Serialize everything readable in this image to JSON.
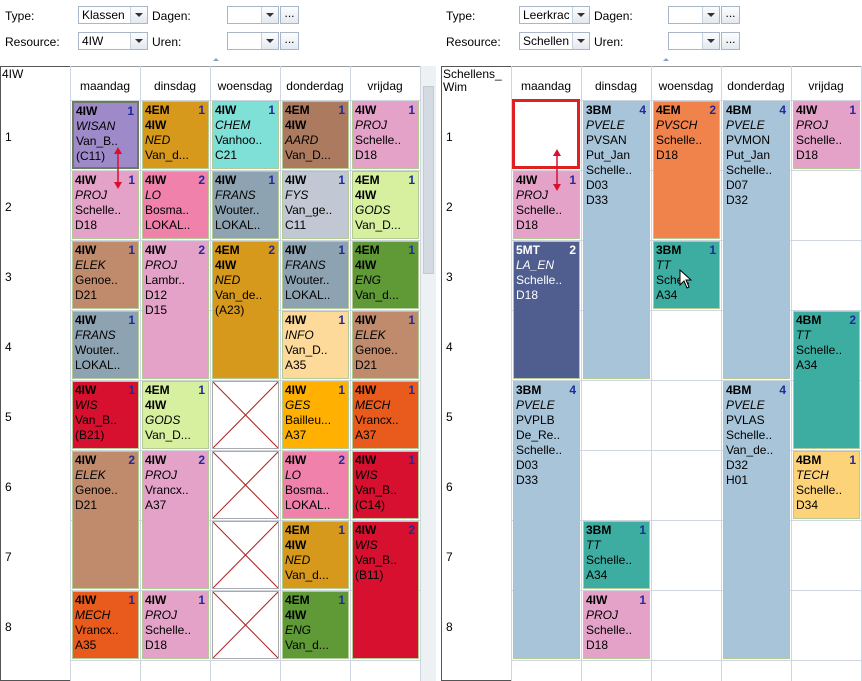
{
  "left": {
    "type_label": "Type:",
    "type_value": "Klassen",
    "days_label": "Dagen:",
    "days_value": "",
    "resource_label": "Resource:",
    "resource_value": "4IW",
    "hours_label": "Uren:",
    "hours_value": "",
    "more_label": "...",
    "corner_label": "4IW",
    "days": [
      "maandag",
      "dinsdag",
      "woensdag",
      "donderdag",
      "vrijdag"
    ],
    "rows": [
      "1",
      "2",
      "3",
      "4",
      "5",
      "6",
      "7",
      "8"
    ],
    "lessons": [
      {
        "day": 0,
        "start": 0,
        "span": 1,
        "color": "#9f8ac9",
        "selected": true,
        "l1": "4IW",
        "l2": "WISAN",
        "l3": "Van_B..",
        "l4": "(C11)",
        "l5": "",
        "count": "1"
      },
      {
        "day": 1,
        "start": 0,
        "span": 1,
        "color": "#d6991c",
        "l1": "4EM",
        "l2": "4IW",
        "l3": "NED",
        "l4": "Van_d...",
        "l5": "",
        "count": "1",
        "l2bold": true,
        "l3italic": true
      },
      {
        "day": 2,
        "start": 0,
        "span": 1,
        "color": "#7fe0d8",
        "l1": "4IW",
        "l2": "CHEM",
        "l3": "Vanhoo..",
        "l4": "C21",
        "l5": "",
        "count": "1"
      },
      {
        "day": 3,
        "start": 0,
        "span": 1,
        "color": "#ac7a5f",
        "l1": "4EM",
        "l2": "4IW",
        "l3": "AARD",
        "l4": "Van_D...",
        "l5": "",
        "count": "1",
        "l2bold": true,
        "l3italic": true
      },
      {
        "day": 4,
        "start": 0,
        "span": 1,
        "color": "#e4a2c9",
        "l1": "4IW",
        "l2": "PROJ",
        "l3": "Schelle..",
        "l4": "D18",
        "l5": "",
        "count": "1"
      },
      {
        "day": 0,
        "start": 1,
        "span": 1,
        "color": "#e4a2c9",
        "l1": "4IW",
        "l2": "PROJ",
        "l3": "Schelle..",
        "l4": "D18",
        "l5": "",
        "count": "1"
      },
      {
        "day": 1,
        "start": 1,
        "span": 1,
        "color": "#ef81ab",
        "l1": "4IW",
        "l2": "LO",
        "l3": "Bosma..",
        "l4": "LOKAL..",
        "l5": "",
        "count": "2"
      },
      {
        "day": 2,
        "start": 1,
        "span": 1,
        "color": "#8ea3b2",
        "l1": "4IW",
        "l2": "FRANS",
        "l3": "Wouter..",
        "l4": "LOKAL..",
        "l5": "",
        "count": "1"
      },
      {
        "day": 3,
        "start": 1,
        "span": 1,
        "color": "#c1c8d3",
        "l1": "4IW",
        "l2": "FYS",
        "l3": "Van_ge..",
        "l4": "C11",
        "l5": "",
        "count": "1"
      },
      {
        "day": 4,
        "start": 1,
        "span": 1,
        "color": "#d6f0a0",
        "l1": "4EM",
        "l2": "4IW",
        "l3": "GODS",
        "l4": "Van_D...",
        "l5": "",
        "count": "1",
        "l2bold": true,
        "l3italic": true
      },
      {
        "day": 0,
        "start": 2,
        "span": 1,
        "color": "#c08b6d",
        "l1": "4IW",
        "l2": "ELEK",
        "l3": "Genoe..",
        "l4": "D21",
        "l5": "",
        "count": "1"
      },
      {
        "day": 1,
        "start": 2,
        "span": 2,
        "color": "#e4a2c9",
        "l1": "4IW",
        "l2": "PROJ",
        "l3": "Lambr..",
        "l4": "D12",
        "l5": "D15",
        "count": "2"
      },
      {
        "day": 2,
        "start": 2,
        "span": 2,
        "color": "#d6991c",
        "l1": "4EM",
        "l2": "4IW",
        "l3": "NED",
        "l4": "Van_de..",
        "l5": "(A23)",
        "count": "2",
        "l2bold": true,
        "l3italic": true
      },
      {
        "day": 3,
        "start": 2,
        "span": 1,
        "color": "#8ea3b2",
        "l1": "4IW",
        "l2": "FRANS",
        "l3": "Wouter..",
        "l4": "LOKAL..",
        "l5": "",
        "count": "1"
      },
      {
        "day": 4,
        "start": 2,
        "span": 1,
        "color": "#5f9a37",
        "l1": "4EM",
        "l2": "4IW",
        "l3": "ENG",
        "l4": "Van_d...",
        "l5": "",
        "count": "1",
        "l2bold": true,
        "l3italic": true
      },
      {
        "day": 0,
        "start": 3,
        "span": 1,
        "color": "#8ea3b2",
        "l1": "4IW",
        "l2": "FRANS",
        "l3": "Wouter..",
        "l4": "LOKAL..",
        "l5": "",
        "count": "1"
      },
      {
        "day": 3,
        "start": 3,
        "span": 1,
        "color": "#fdd99a",
        "l1": "4IW",
        "l2": "INFO",
        "l3": "Van_D..",
        "l4": "A35",
        "l5": "",
        "count": "1"
      },
      {
        "day": 4,
        "start": 3,
        "span": 1,
        "color": "#c08b6d",
        "l1": "4IW",
        "l2": "ELEK",
        "l3": "Genoe..",
        "l4": "D21",
        "l5": "",
        "count": "1"
      },
      {
        "day": 0,
        "start": 4,
        "span": 1,
        "color": "#d8102f",
        "l1": "4IW",
        "l2": "WIS",
        "l3": "Van_B..",
        "l4": "(B21)",
        "l5": "",
        "count": "1"
      },
      {
        "day": 1,
        "start": 4,
        "span": 1,
        "color": "#d6f0a0",
        "l1": "4EM",
        "l2": "4IW",
        "l3": "GODS",
        "l4": "Van_D...",
        "l5": "",
        "count": "1",
        "l2bold": true,
        "l3italic": true
      },
      {
        "day": 3,
        "start": 4,
        "span": 1,
        "color": "#ffb000",
        "l1": "4IW",
        "l2": "GES",
        "l3": "Bailleu...",
        "l4": "A37",
        "l5": "",
        "count": "1"
      },
      {
        "day": 4,
        "start": 4,
        "span": 1,
        "color": "#e85b1c",
        "l1": "4IW",
        "l2": "MECH",
        "l3": "Vrancx..",
        "l4": "A37",
        "l5": "",
        "count": "1"
      },
      {
        "day": 0,
        "start": 5,
        "span": 2,
        "color": "#c08b6d",
        "l1": "4IW",
        "l2": "ELEK",
        "l3": "Genoe..",
        "l4": "D21",
        "l5": "",
        "count": "2"
      },
      {
        "day": 1,
        "start": 5,
        "span": 2,
        "color": "#e4a2c9",
        "l1": "4IW",
        "l2": "PROJ",
        "l3": "Vrancx..",
        "l4": "A37",
        "l5": "",
        "count": "2"
      },
      {
        "day": 3,
        "start": 5,
        "span": 1,
        "color": "#ef81ab",
        "l1": "4IW",
        "l2": "LO",
        "l3": "Bosma..",
        "l4": "LOKAL..",
        "l5": "",
        "count": "2"
      },
      {
        "day": 4,
        "start": 5,
        "span": 1,
        "color": "#d8102f",
        "l1": "4IW",
        "l2": "WIS",
        "l3": "Van_B..",
        "l4": "(C14)",
        "l5": "",
        "count": "1"
      },
      {
        "day": 3,
        "start": 6,
        "span": 1,
        "color": "#d6991c",
        "l1": "4EM",
        "l2": "4IW",
        "l3": "NED",
        "l4": "Van_d...",
        "l5": "",
        "count": "1",
        "l2bold": true,
        "l3italic": true
      },
      {
        "day": 4,
        "start": 6,
        "span": 2,
        "color": "#d8102f",
        "l1": "4IW",
        "l2": "WIS",
        "l3": "Van_B..",
        "l4": "(B11)",
        "l5": "",
        "count": "2"
      },
      {
        "day": 0,
        "start": 7,
        "span": 1,
        "color": "#e85b1c",
        "l1": "4IW",
        "l2": "MECH",
        "l3": "Vrancx..",
        "l4": "A35",
        "l5": "",
        "count": "1"
      },
      {
        "day": 1,
        "start": 7,
        "span": 1,
        "color": "#e4a2c9",
        "l1": "4IW",
        "l2": "PROJ",
        "l3": "Schelle..",
        "l4": "D18",
        "l5": "",
        "count": "1"
      },
      {
        "day": 3,
        "start": 7,
        "span": 1,
        "color": "#5f9a37",
        "l1": "4EM",
        "l2": "4IW",
        "l3": "ENG",
        "l4": "Van_d...",
        "l5": "",
        "count": "1",
        "l2bold": true,
        "l3italic": true
      }
    ]
  },
  "right": {
    "type_label": "Type:",
    "type_value": "Leerkracht",
    "days_label": "Dagen:",
    "days_value": "",
    "resource_label": "Resource:",
    "resource_value": "Schellens_",
    "hours_label": "Uren:",
    "hours_value": "",
    "more_label": "...",
    "corner_label": "Schellens_\nWim",
    "days": [
      "maandag",
      "dinsdag",
      "woensdag",
      "donderdag",
      "vrijdag"
    ],
    "rows": [
      "1",
      "2",
      "3",
      "4",
      "5",
      "6",
      "7",
      "8"
    ],
    "lessons": [
      {
        "day": 0,
        "start": 1,
        "span": 1,
        "color": "#e4a2c9",
        "l1": "4IW",
        "l2": "PROJ",
        "l3": "Schelle..",
        "l4": "D18",
        "l5": "",
        "count": "1"
      },
      {
        "day": 1,
        "start": 0,
        "span": 4,
        "color": "#a8c4d9",
        "l1": "3BM",
        "l2": "PVELE",
        "l3": "PVSAN",
        "l4": "Put_Jan",
        "l5": "Schelle..",
        "l6": "D03",
        "l7": "D33",
        "count": "4"
      },
      {
        "day": 2,
        "start": 0,
        "span": 2,
        "color": "#f0834c",
        "l1": "4EM",
        "l2": "PVSCH",
        "l3": "Schelle..",
        "l4": "D18",
        "l5": "",
        "count": "2"
      },
      {
        "day": 3,
        "start": 0,
        "span": 4,
        "color": "#a8c4d9",
        "l1": "4BM",
        "l2": "PVELE",
        "l3": "PVMON",
        "l4": "Put_Jan",
        "l5": "Schelle..",
        "l6": "D07",
        "l7": "D32",
        "count": "4"
      },
      {
        "day": 4,
        "start": 0,
        "span": 1,
        "color": "#e4a2c9",
        "l1": "4IW",
        "l2": "PROJ",
        "l3": "Schelle..",
        "l4": "D18",
        "l5": "",
        "count": "1"
      },
      {
        "day": 0,
        "start": 2,
        "span": 2,
        "color": "#4f5d8f",
        "l1": "5MT",
        "l2": "LA_EN",
        "l3": "Schelle..",
        "l4": "D18",
        "l5": "",
        "count": "2",
        "textcolor": "#ffffff"
      },
      {
        "day": 2,
        "start": 2,
        "span": 1,
        "color": "#3eada1",
        "l1": "3BM",
        "l2": "TT",
        "l3": "Sche..",
        "l4": "A34",
        "l5": "",
        "count": "1"
      },
      {
        "day": 4,
        "start": 3,
        "span": 2,
        "color": "#3eada1",
        "l1": "4BM",
        "l2": "TT",
        "l3": "Schelle..",
        "l4": "A34",
        "l5": "",
        "count": "2"
      },
      {
        "day": 0,
        "start": 4,
        "span": 4,
        "color": "#a8c4d9",
        "l1": "3BM",
        "l2": "PVELE",
        "l3": "PVPLB",
        "l4": "De_Re..",
        "l5": "Schelle..",
        "l6": "D03",
        "l7": "D33",
        "count": "4"
      },
      {
        "day": 3,
        "start": 4,
        "span": 4,
        "color": "#a8c4d9",
        "l1": "4BM",
        "l2": "PVELE",
        "l3": "PVLAS",
        "l4": "Schelle..",
        "l5": "Van_de..",
        "l6": "D32",
        "l7": "H01",
        "count": "4"
      },
      {
        "day": 4,
        "start": 5,
        "span": 1,
        "color": "#fdd37a",
        "l1": "4BM",
        "l2": "TECH",
        "l3": "Schelle..",
        "l4": "D34",
        "l5": "",
        "count": "1"
      },
      {
        "day": 1,
        "start": 6,
        "span": 1,
        "color": "#3eada1",
        "l1": "3BM",
        "l2": "TT",
        "l3": "Schelle..",
        "l4": "A34",
        "l5": "",
        "count": "1"
      },
      {
        "day": 1,
        "start": 7,
        "span": 1,
        "color": "#e4a2c9",
        "l1": "4IW",
        "l2": "PROJ",
        "l3": "Schelle..",
        "l4": "D18",
        "l5": "",
        "count": "1"
      }
    ]
  }
}
